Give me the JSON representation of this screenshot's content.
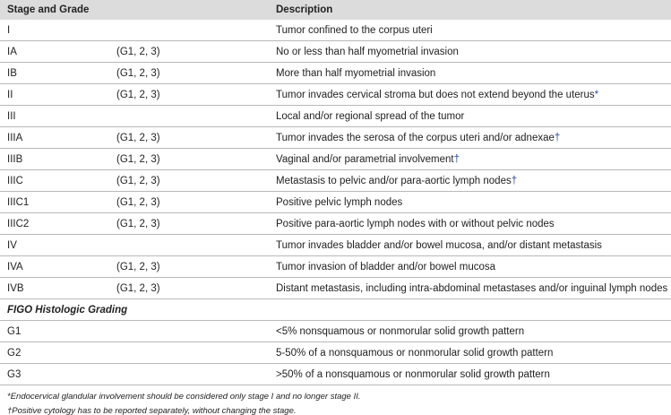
{
  "table": {
    "headers": [
      "Stage and Grade",
      "Description"
    ],
    "rows": [
      {
        "stage": "I",
        "description": "Tumor confined to the corpus uteri"
      },
      {
        "stage": "IA",
        "grade": "(G1, 2, 3)",
        "description": "No or less than half myometrial invasion"
      },
      {
        "stage": "IB",
        "grade": "(G1, 2, 3)",
        "description": "More than half myometrial invasion"
      },
      {
        "stage": "II",
        "grade": "(G1, 2, 3)",
        "description": "Tumor invades cervical stroma but does not extend beyond the uterus",
        "note": "*"
      },
      {
        "stage": "III",
        "description": "Local and/or regional spread of the tumor"
      },
      {
        "stage": "IIIA",
        "grade": "(G1, 2, 3)",
        "description": "Tumor invades the serosa of the corpus uteri and/or adnexae",
        "note": "†"
      },
      {
        "stage": "IIIB",
        "grade": "(G1, 2, 3)",
        "description": "Vaginal and/or parametrial involvement",
        "note": "†"
      },
      {
        "stage": "IIIC",
        "grade": "(G1, 2, 3)",
        "description": "Metastasis to pelvic and/or para-aortic lymph nodes",
        "note": "†"
      },
      {
        "stage": "IIIC1",
        "grade": "(G1, 2, 3)",
        "description": "Positive pelvic lymph nodes"
      },
      {
        "stage": "IIIC2",
        "grade": "(G1, 2, 3)",
        "description": "Positive para-aortic lymph nodes with or without pelvic nodes"
      },
      {
        "stage": "IV",
        "description": "Tumor invades bladder and/or bowel mucosa, and/or distant metastasis"
      },
      {
        "stage": "IVA",
        "grade": "(G1, 2, 3)",
        "description": "Tumor invasion of bladder and/or bowel mucosa"
      },
      {
        "stage": "IVB",
        "grade": "(G1, 2, 3)",
        "description": "Distant metastasis, including intra-abdominal metastases and/or inguinal lymph nodes"
      },
      {
        "section": "FIGO Histologic Grading"
      },
      {
        "stage": "G1",
        "description": "<5% nonsquamous or nonmorular solid growth pattern"
      },
      {
        "stage": "G2",
        "description": "5-50% of a nonsquamous or nonmorular solid growth pattern"
      },
      {
        "stage": "G3",
        "description": ">50% of a nonsquamous or nonmorular solid growth pattern"
      }
    ]
  },
  "footnotes": [
    "*Endocervical glandular involvement should be considered only stage I and no longer stage II.",
    "†Positive cytology has to be reported separately, without changing the stage."
  ]
}
